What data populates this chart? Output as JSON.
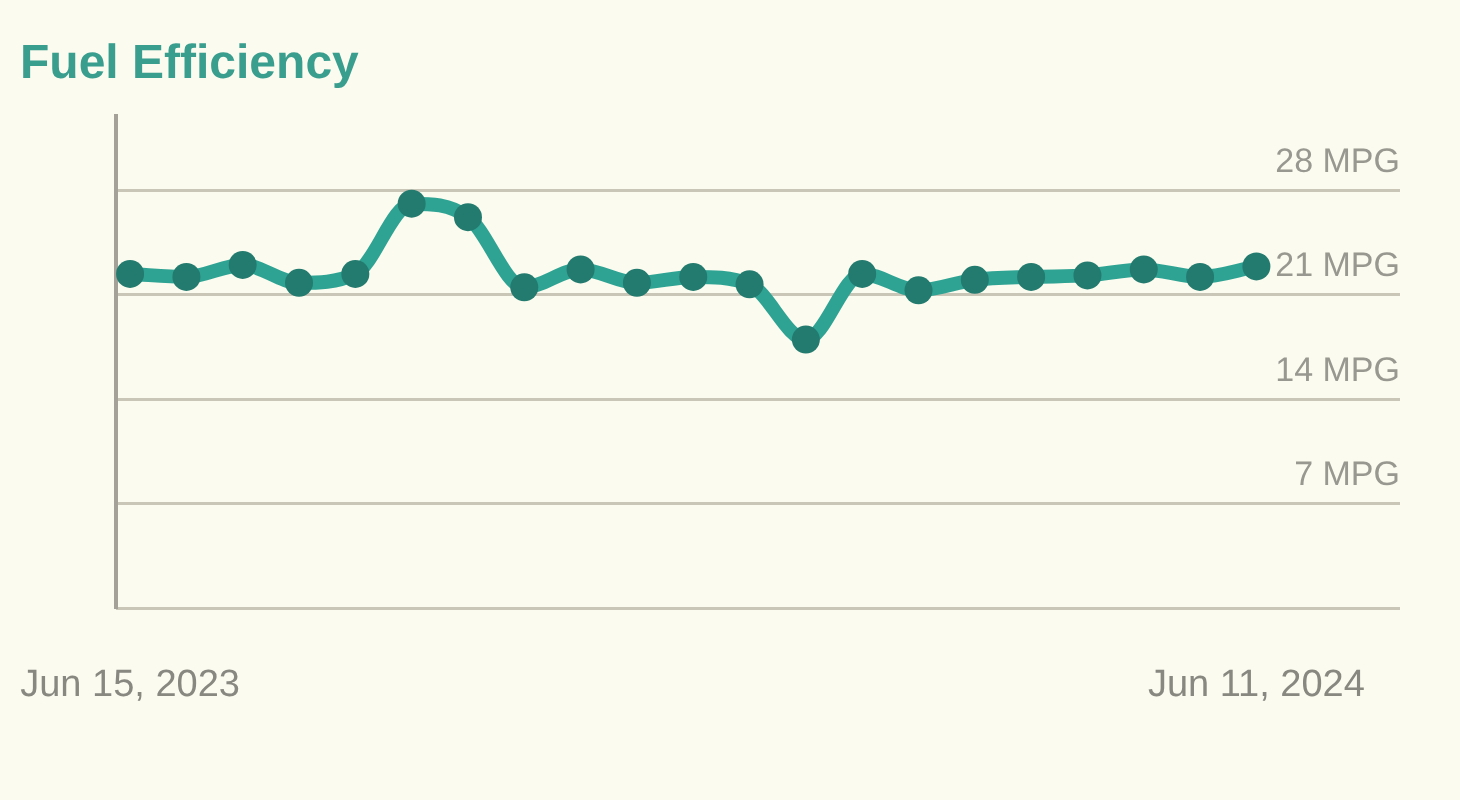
{
  "chart_data": {
    "type": "line",
    "title": "Fuel Efficiency",
    "categories": [
      "Jun 15, 2023",
      null,
      null,
      null,
      null,
      null,
      null,
      null,
      null,
      null,
      null,
      null,
      null,
      null,
      null,
      null,
      null,
      null,
      null,
      null,
      "Jun 11, 2024"
    ],
    "series": [
      {
        "color": "#2fa393",
        "values": [
          22.4,
          22.2,
          23.0,
          21.8,
          22.4,
          27.1,
          26.2,
          21.5,
          22.7,
          21.8,
          22.2,
          21.7,
          18.0,
          22.4,
          21.3,
          22.0,
          22.2,
          22.3,
          22.7,
          22.2,
          22.9
        ]
      }
    ],
    "ylim": [
      0,
      33
    ],
    "yticks": [
      {
        "value": 0,
        "label": null
      },
      {
        "value": 7,
        "label": "7 MPG"
      },
      {
        "value": 14,
        "label": "14 MPG"
      },
      {
        "value": 21,
        "label": "21 MPG"
      },
      {
        "value": 28,
        "label": "28 MPG"
      }
    ],
    "grid": "y",
    "marker": "circle",
    "line_style": "solid"
  }
}
